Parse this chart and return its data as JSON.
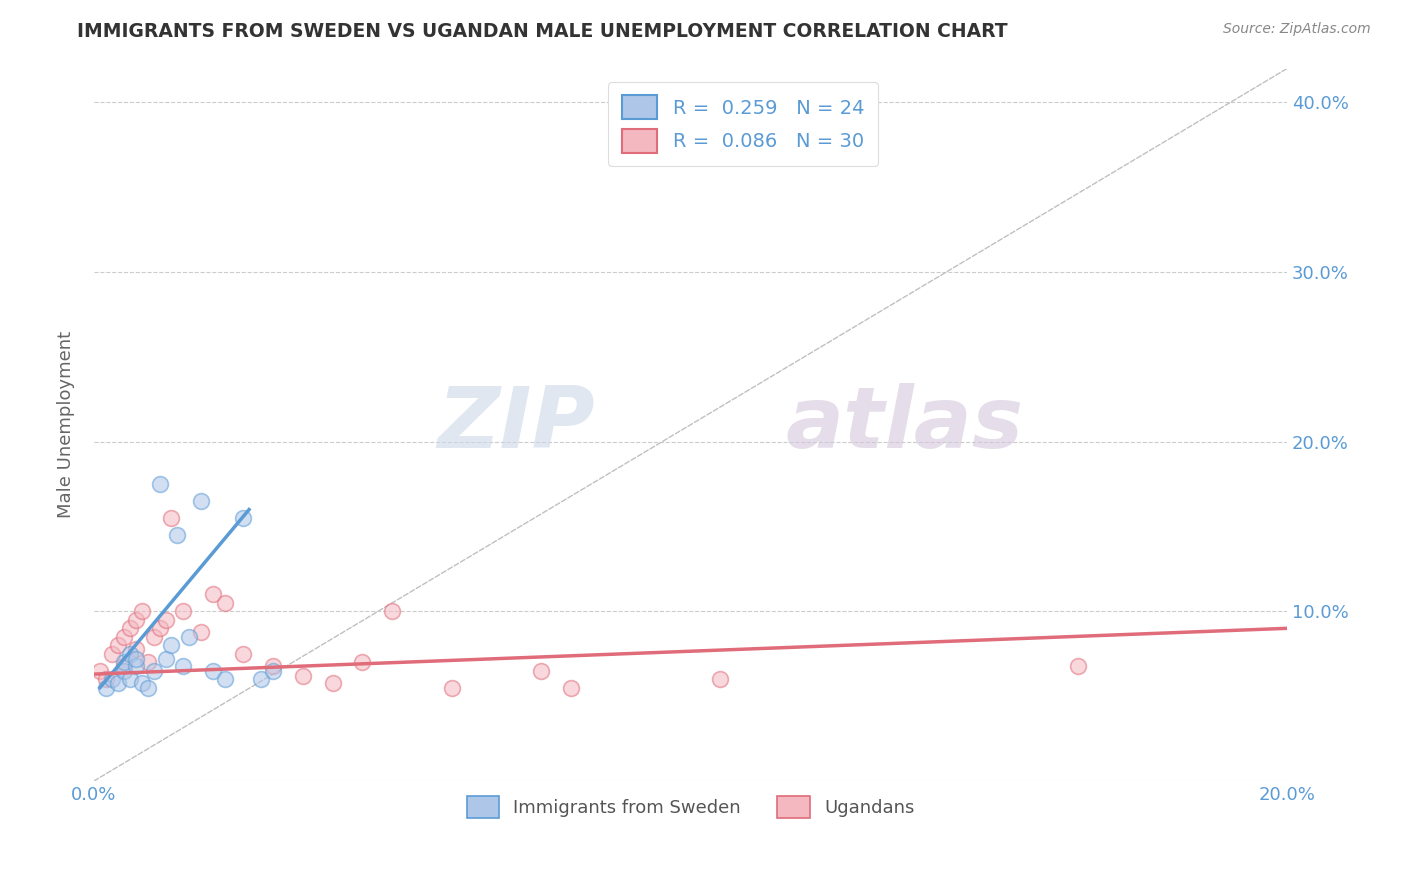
{
  "title": "IMMIGRANTS FROM SWEDEN VS UGANDAN MALE UNEMPLOYMENT CORRELATION CHART",
  "source": "Source: ZipAtlas.com",
  "xlabel": "",
  "ylabel": "Male Unemployment",
  "watermark_zip": "ZIP",
  "watermark_atlas": "atlas",
  "xlim": [
    0.0,
    0.2
  ],
  "ylim": [
    0.0,
    0.42
  ],
  "xticks": [
    0.0,
    0.05,
    0.1,
    0.15,
    0.2
  ],
  "xtick_labels": [
    "0.0%",
    "",
    "",
    "",
    "20.0%"
  ],
  "yticks": [
    0.0,
    0.1,
    0.2,
    0.3,
    0.4
  ],
  "ytick_labels": [
    "",
    "10.0%",
    "20.0%",
    "30.0%",
    "40.0%"
  ],
  "blue_scatter_x": [
    0.002,
    0.003,
    0.004,
    0.005,
    0.005,
    0.006,
    0.006,
    0.007,
    0.007,
    0.008,
    0.009,
    0.01,
    0.011,
    0.012,
    0.013,
    0.014,
    0.015,
    0.016,
    0.018,
    0.02,
    0.022,
    0.025,
    0.028,
    0.03
  ],
  "blue_scatter_y": [
    0.055,
    0.06,
    0.058,
    0.065,
    0.07,
    0.06,
    0.075,
    0.068,
    0.072,
    0.058,
    0.055,
    0.065,
    0.175,
    0.072,
    0.08,
    0.145,
    0.068,
    0.085,
    0.165,
    0.065,
    0.06,
    0.155,
    0.06,
    0.065
  ],
  "pink_scatter_x": [
    0.001,
    0.002,
    0.003,
    0.004,
    0.005,
    0.005,
    0.006,
    0.007,
    0.007,
    0.008,
    0.009,
    0.01,
    0.011,
    0.012,
    0.013,
    0.015,
    0.018,
    0.02,
    0.022,
    0.025,
    0.03,
    0.035,
    0.04,
    0.045,
    0.05,
    0.06,
    0.075,
    0.08,
    0.105,
    0.165
  ],
  "pink_scatter_y": [
    0.065,
    0.06,
    0.075,
    0.08,
    0.085,
    0.068,
    0.09,
    0.095,
    0.078,
    0.1,
    0.07,
    0.085,
    0.09,
    0.095,
    0.155,
    0.1,
    0.088,
    0.11,
    0.105,
    0.075,
    0.068,
    0.062,
    0.058,
    0.07,
    0.1,
    0.055,
    0.065,
    0.055,
    0.06,
    0.068
  ],
  "blue_line_x": [
    0.001,
    0.026
  ],
  "blue_line_y": [
    0.055,
    0.16
  ],
  "pink_line_x": [
    0.0,
    0.2
  ],
  "pink_line_y": [
    0.063,
    0.09
  ],
  "trend_line_x": [
    0.0,
    0.2
  ],
  "trend_line_y": [
    0.0,
    0.42
  ],
  "blue_color": "#5b9bd5",
  "pink_color": "#e06c7a",
  "blue_scatter_color": "#aec6e8",
  "pink_scatter_color": "#f4b8c1",
  "trend_color": "#c0c0c0",
  "bg_color": "#ffffff",
  "grid_color": "#cccccc",
  "title_color": "#333333",
  "axis_label_color": "#666666",
  "tick_color": "#5b9bd5",
  "legend_text_color": "#5b9bd5",
  "scatter_size": 130,
  "scatter_alpha": 0.55,
  "scatter_linewidth": 1.2
}
